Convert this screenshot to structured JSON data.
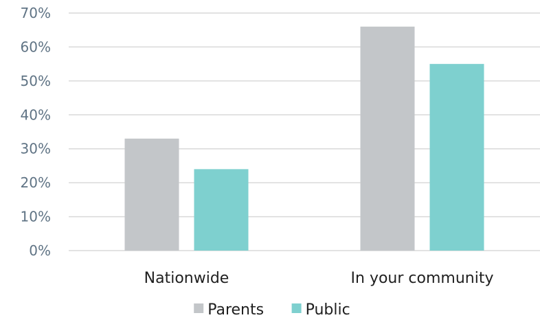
{
  "chart_data": {
    "type": "bar",
    "categories": [
      "Nationwide",
      "In your community"
    ],
    "series": [
      {
        "name": "Parents",
        "values": [
          33,
          66
        ],
        "color": "#c3c6c9"
      },
      {
        "name": "Public",
        "values": [
          24,
          55
        ],
        "color": "#7ed0cf"
      }
    ],
    "ylim": [
      0,
      70
    ],
    "yticks": [
      "0%",
      "10%",
      "20%",
      "30%",
      "40%",
      "50%",
      "60%",
      "70%"
    ],
    "grid": true,
    "legend_position": "bottom"
  }
}
